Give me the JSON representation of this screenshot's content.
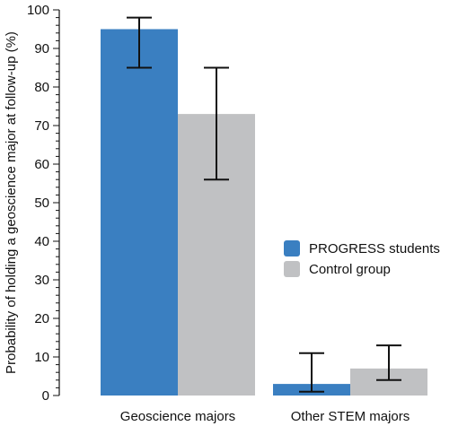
{
  "chart_data": {
    "type": "bar",
    "title": "",
    "xlabel": "",
    "ylabel": "Probability of holding a geoscience major at follow-up (%)",
    "categories": [
      "Geoscience majors",
      "Other STEM majors"
    ],
    "ylim": [
      0,
      100
    ],
    "yticks": [
      0,
      10,
      20,
      30,
      40,
      50,
      60,
      70,
      80,
      90,
      100
    ],
    "grid": false,
    "legend_position": "right-middle",
    "series": [
      {
        "name": "PROGRESS students",
        "color": "#3a7fc1",
        "values": [
          95,
          3
        ],
        "error_low": [
          85,
          1
        ],
        "error_high": [
          98,
          11
        ]
      },
      {
        "name": "Control group",
        "color": "#c0c1c3",
        "values": [
          73,
          7
        ],
        "error_low": [
          56,
          4
        ],
        "error_high": [
          85,
          13
        ]
      }
    ]
  }
}
